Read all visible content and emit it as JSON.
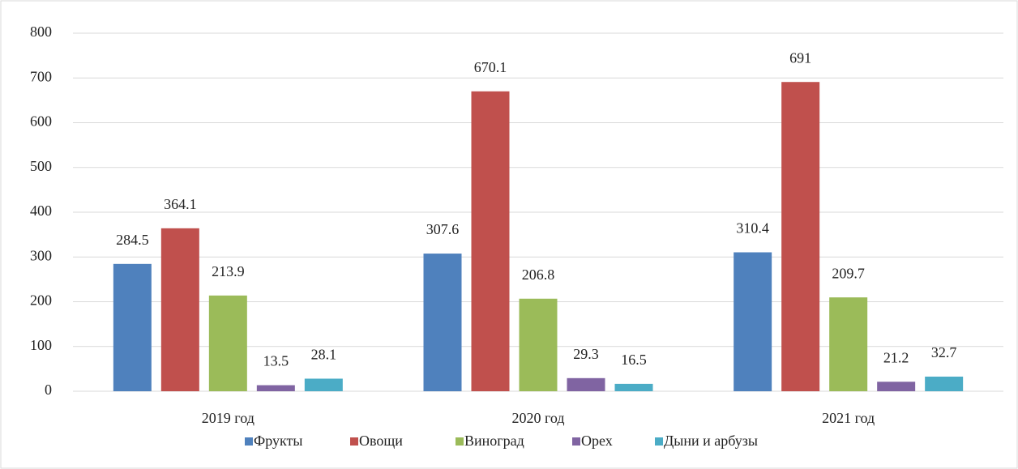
{
  "chart_data": {
    "type": "bar",
    "categories": [
      "2019 год",
      "2020 год",
      "2021 год"
    ],
    "series": [
      {
        "name": "Фрукты",
        "color": "#4f81bd",
        "values": [
          284.5,
          307.6,
          310.4
        ]
      },
      {
        "name": "Овощи",
        "color": "#c0504d",
        "values": [
          364.1,
          670.1,
          691
        ]
      },
      {
        "name": "Виноград",
        "color": "#9bbb59",
        "values": [
          213.9,
          206.8,
          209.7
        ]
      },
      {
        "name": "Орех",
        "color": "#8064a2",
        "values": [
          13.5,
          29.3,
          21.2
        ]
      },
      {
        "name": "Дыни и арбузы",
        "color": "#4bacc6",
        "values": [
          28.1,
          16.5,
          32.7
        ]
      }
    ],
    "ylim": [
      0,
      800
    ],
    "yticks": [
      0,
      100,
      200,
      300,
      400,
      500,
      600,
      700,
      800
    ],
    "grid": true,
    "legend": "bottom"
  }
}
